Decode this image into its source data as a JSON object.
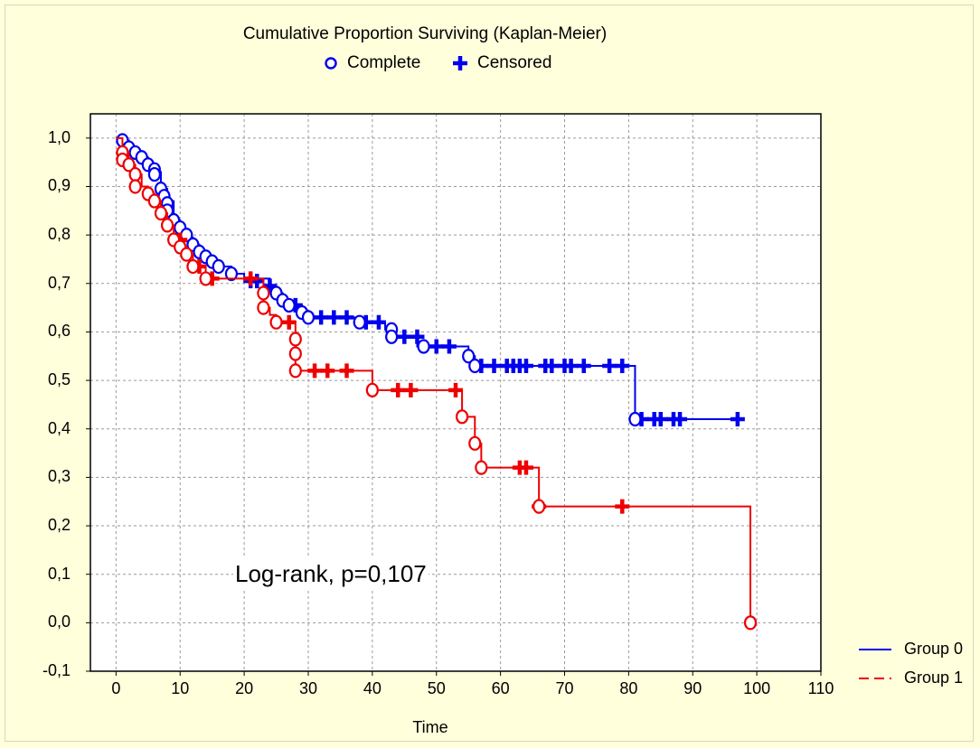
{
  "chart_data": {
    "type": "line",
    "title": "Cumulative Proportion Surviving (Kaplan-Meier)",
    "xlabel": "Time",
    "ylabel": "",
    "xlim": [
      -4,
      110
    ],
    "ylim": [
      -0.1,
      1.05
    ],
    "x_ticks": [
      "0",
      "10",
      "20",
      "30",
      "40",
      "50",
      "60",
      "70",
      "80",
      "90",
      "100",
      "110"
    ],
    "y_ticks": [
      "1,0",
      "0,9",
      "0,8",
      "0,7",
      "0,6",
      "0,5",
      "0,4",
      "0,3",
      "0,2",
      "0,1",
      "0,0",
      "-0,1"
    ],
    "grid": true,
    "marker_legend": [
      {
        "symbol": "circle",
        "label": "Complete"
      },
      {
        "symbol": "plus",
        "label": "Censored"
      }
    ],
    "annotation": "Log-rank, p=0,107",
    "series": [
      {
        "name": "Group 0",
        "color": "#0000ee",
        "line_style": "solid",
        "steps": [
          [
            0,
            1.0
          ],
          [
            1,
            0.995
          ],
          [
            2,
            0.98
          ],
          [
            3,
            0.97
          ],
          [
            4,
            0.96
          ],
          [
            5,
            0.945
          ],
          [
            6,
            0.93
          ],
          [
            7,
            0.895
          ],
          [
            8,
            0.87
          ],
          [
            9,
            0.83
          ],
          [
            10,
            0.81
          ],
          [
            11,
            0.795
          ],
          [
            12,
            0.78
          ],
          [
            13,
            0.765
          ],
          [
            14,
            0.755
          ],
          [
            15,
            0.745
          ],
          [
            16,
            0.735
          ],
          [
            18,
            0.72
          ],
          [
            20,
            0.71
          ],
          [
            24,
            0.695
          ],
          [
            25,
            0.68
          ],
          [
            26,
            0.665
          ],
          [
            27,
            0.655
          ],
          [
            29,
            0.64
          ],
          [
            30,
            0.63
          ],
          [
            38,
            0.62
          ],
          [
            42,
            0.605
          ],
          [
            43,
            0.59
          ],
          [
            47,
            0.57
          ],
          [
            55,
            0.55
          ],
          [
            56,
            0.53
          ],
          [
            81,
            0.42
          ],
          [
            97,
            0.42
          ]
        ],
        "complete_events": [
          [
            1,
            0.995
          ],
          [
            2,
            0.98
          ],
          [
            3,
            0.97
          ],
          [
            4,
            0.96
          ],
          [
            5,
            0.945
          ],
          [
            6,
            0.935
          ],
          [
            6,
            0.925
          ],
          [
            7,
            0.895
          ],
          [
            7.5,
            0.88
          ],
          [
            8,
            0.865
          ],
          [
            8,
            0.85
          ],
          [
            9,
            0.83
          ],
          [
            10,
            0.815
          ],
          [
            11,
            0.8
          ],
          [
            12,
            0.78
          ],
          [
            13,
            0.765
          ],
          [
            14,
            0.755
          ],
          [
            15,
            0.745
          ],
          [
            16,
            0.735
          ],
          [
            18,
            0.72
          ],
          [
            25,
            0.68
          ],
          [
            26,
            0.665
          ],
          [
            27,
            0.655
          ],
          [
            29,
            0.64
          ],
          [
            30,
            0.63
          ],
          [
            38,
            0.62
          ],
          [
            43,
            0.605
          ],
          [
            43,
            0.59
          ],
          [
            48,
            0.57
          ],
          [
            55,
            0.55
          ],
          [
            56,
            0.53
          ],
          [
            81,
            0.42
          ]
        ],
        "censored_events": [
          [
            21,
            0.705
          ],
          [
            22,
            0.705
          ],
          [
            24,
            0.695
          ],
          [
            28,
            0.655
          ],
          [
            32,
            0.63
          ],
          [
            34,
            0.63
          ],
          [
            36,
            0.63
          ],
          [
            39,
            0.62
          ],
          [
            41,
            0.62
          ],
          [
            45,
            0.59
          ],
          [
            47,
            0.59
          ],
          [
            50,
            0.57
          ],
          [
            52,
            0.57
          ],
          [
            57,
            0.53
          ],
          [
            59,
            0.53
          ],
          [
            61,
            0.53
          ],
          [
            62,
            0.53
          ],
          [
            63,
            0.53
          ],
          [
            64,
            0.53
          ],
          [
            67,
            0.53
          ],
          [
            68,
            0.53
          ],
          [
            70,
            0.53
          ],
          [
            71,
            0.53
          ],
          [
            73,
            0.53
          ],
          [
            77,
            0.53
          ],
          [
            79,
            0.53
          ],
          [
            82,
            0.42
          ],
          [
            84,
            0.42
          ],
          [
            85,
            0.42
          ],
          [
            87,
            0.42
          ],
          [
            88,
            0.42
          ],
          [
            97,
            0.42
          ]
        ]
      },
      {
        "name": "Group 1",
        "color": "#ee0000",
        "line_style": "dashed",
        "steps": [
          [
            0,
            1.0
          ],
          [
            1,
            0.97
          ],
          [
            2,
            0.945
          ],
          [
            3,
            0.925
          ],
          [
            4,
            0.9
          ],
          [
            5,
            0.885
          ],
          [
            6,
            0.87
          ],
          [
            7,
            0.845
          ],
          [
            8,
            0.82
          ],
          [
            9,
            0.79
          ],
          [
            10,
            0.775
          ],
          [
            11,
            0.76
          ],
          [
            12,
            0.735
          ],
          [
            14,
            0.71
          ],
          [
            23,
            0.68
          ],
          [
            23,
            0.65
          ],
          [
            24,
            0.635
          ],
          [
            25,
            0.62
          ],
          [
            28,
            0.585
          ],
          [
            28,
            0.555
          ],
          [
            28,
            0.52
          ],
          [
            40,
            0.48
          ],
          [
            54,
            0.425
          ],
          [
            56,
            0.37
          ],
          [
            57,
            0.32
          ],
          [
            66,
            0.24
          ],
          [
            99,
            0.0
          ]
        ],
        "complete_events": [
          [
            1,
            0.97
          ],
          [
            1,
            0.955
          ],
          [
            2,
            0.945
          ],
          [
            3,
            0.925
          ],
          [
            3,
            0.9
          ],
          [
            5,
            0.885
          ],
          [
            6,
            0.87
          ],
          [
            7,
            0.845
          ],
          [
            8,
            0.82
          ],
          [
            9,
            0.79
          ],
          [
            10,
            0.775
          ],
          [
            11,
            0.76
          ],
          [
            12,
            0.735
          ],
          [
            14,
            0.71
          ],
          [
            23,
            0.68
          ],
          [
            23,
            0.65
          ],
          [
            25,
            0.62
          ],
          [
            28,
            0.585
          ],
          [
            28,
            0.555
          ],
          [
            28,
            0.52
          ],
          [
            40,
            0.48
          ],
          [
            54,
            0.425
          ],
          [
            56,
            0.37
          ],
          [
            57,
            0.32
          ],
          [
            66,
            0.24
          ],
          [
            99,
            0.0
          ]
        ],
        "censored_events": [
          [
            10,
            0.79
          ],
          [
            13,
            0.735
          ],
          [
            15,
            0.71
          ],
          [
            21,
            0.71
          ],
          [
            27,
            0.62
          ],
          [
            31,
            0.52
          ],
          [
            33,
            0.52
          ],
          [
            36,
            0.52
          ],
          [
            44,
            0.48
          ],
          [
            46,
            0.48
          ],
          [
            53,
            0.48
          ],
          [
            63,
            0.32
          ],
          [
            64,
            0.32
          ],
          [
            66,
            0.24
          ],
          [
            79,
            0.24
          ]
        ]
      }
    ]
  }
}
